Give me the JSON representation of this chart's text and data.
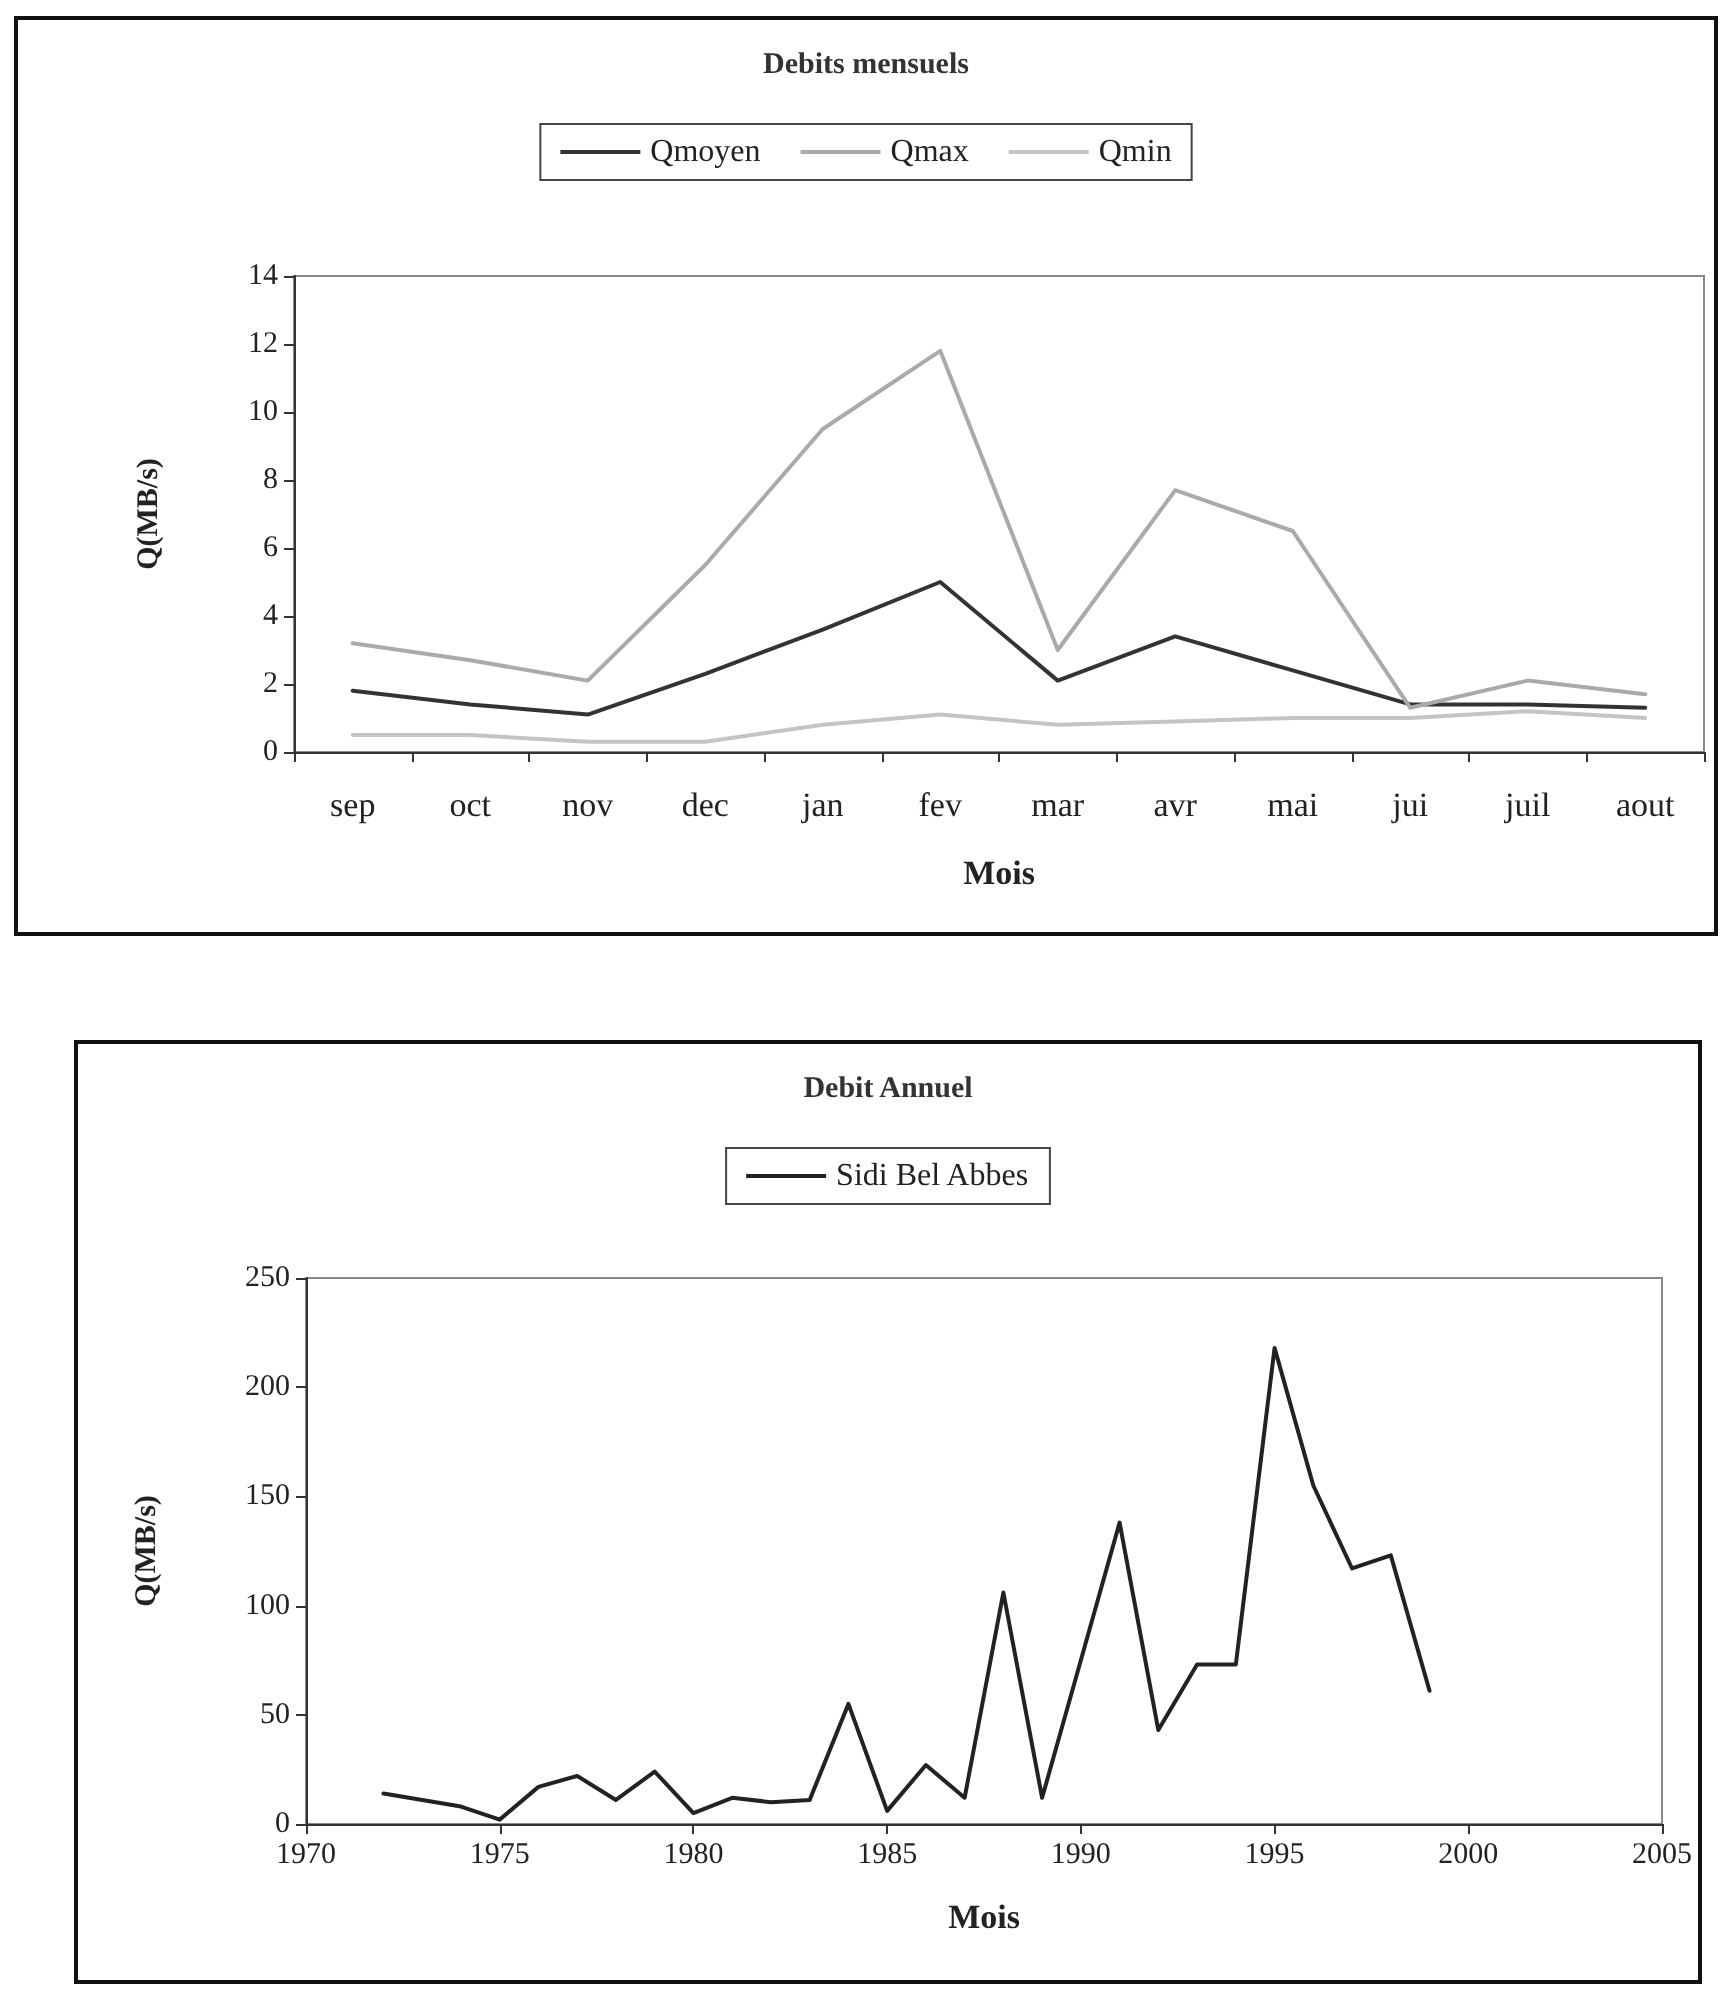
{
  "chart_data": [
    {
      "type": "line",
      "title": "Debits mensuels",
      "xlabel": "Mois",
      "ylabel": "Q(MB/s)",
      "categories": [
        "sep",
        "oct",
        "nov",
        "dec",
        "jan",
        "fev",
        "mar",
        "avr",
        "mai",
        "jui",
        "juil",
        "aout"
      ],
      "series": [
        {
          "name": "Qmoyen",
          "color": "#333333",
          "values": [
            1.8,
            1.4,
            1.1,
            2.3,
            3.6,
            5.0,
            2.1,
            3.4,
            2.4,
            1.4,
            1.4,
            1.3
          ]
        },
        {
          "name": "Qmax",
          "color": "#aaaaaa",
          "values": [
            3.2,
            2.7,
            2.1,
            5.5,
            9.5,
            11.8,
            3.0,
            7.7,
            6.5,
            1.3,
            2.1,
            1.7
          ]
        },
        {
          "name": "Qmin",
          "color": "#c4c4c4",
          "values": [
            0.5,
            0.5,
            0.3,
            0.3,
            0.8,
            1.1,
            0.8,
            0.9,
            1.0,
            1.0,
            1.2,
            1.0
          ]
        }
      ],
      "ylim": [
        0,
        14
      ],
      "yticks": [
        0,
        2,
        4,
        6,
        8,
        10,
        12,
        14
      ],
      "grid": false,
      "legend": "top",
      "marker": "none",
      "line_style": "solid"
    },
    {
      "type": "line",
      "title": "Debit Annuel",
      "xlabel": "Mois",
      "ylabel": "Q(MB/s)",
      "x": [
        1972,
        1973,
        1974,
        1975,
        1976,
        1977,
        1978,
        1979,
        1980,
        1981,
        1982,
        1983,
        1984,
        1985,
        1986,
        1987,
        1988,
        1989,
        1990,
        1991,
        1992,
        1993,
        1994,
        1995,
        1996,
        1997,
        1998,
        1999
      ],
      "series": [
        {
          "name": "Sidi Bel Abbes",
          "color": "#222222",
          "values": [
            14,
            11,
            8,
            2,
            17,
            22,
            11,
            24,
            5,
            12,
            10,
            11,
            55,
            6,
            27,
            12,
            106,
            12,
            75,
            138,
            43,
            73,
            73,
            218,
            155,
            117,
            123,
            61
          ]
        }
      ],
      "xlim": [
        1970,
        2005
      ],
      "xticks": [
        1970,
        1975,
        1980,
        1985,
        1990,
        1995,
        2000,
        2005
      ],
      "ylim": [
        0,
        250
      ],
      "yticks": [
        0,
        50,
        100,
        150,
        200,
        250
      ],
      "grid": false,
      "legend": "top",
      "marker": "none",
      "line_style": "solid"
    }
  ]
}
